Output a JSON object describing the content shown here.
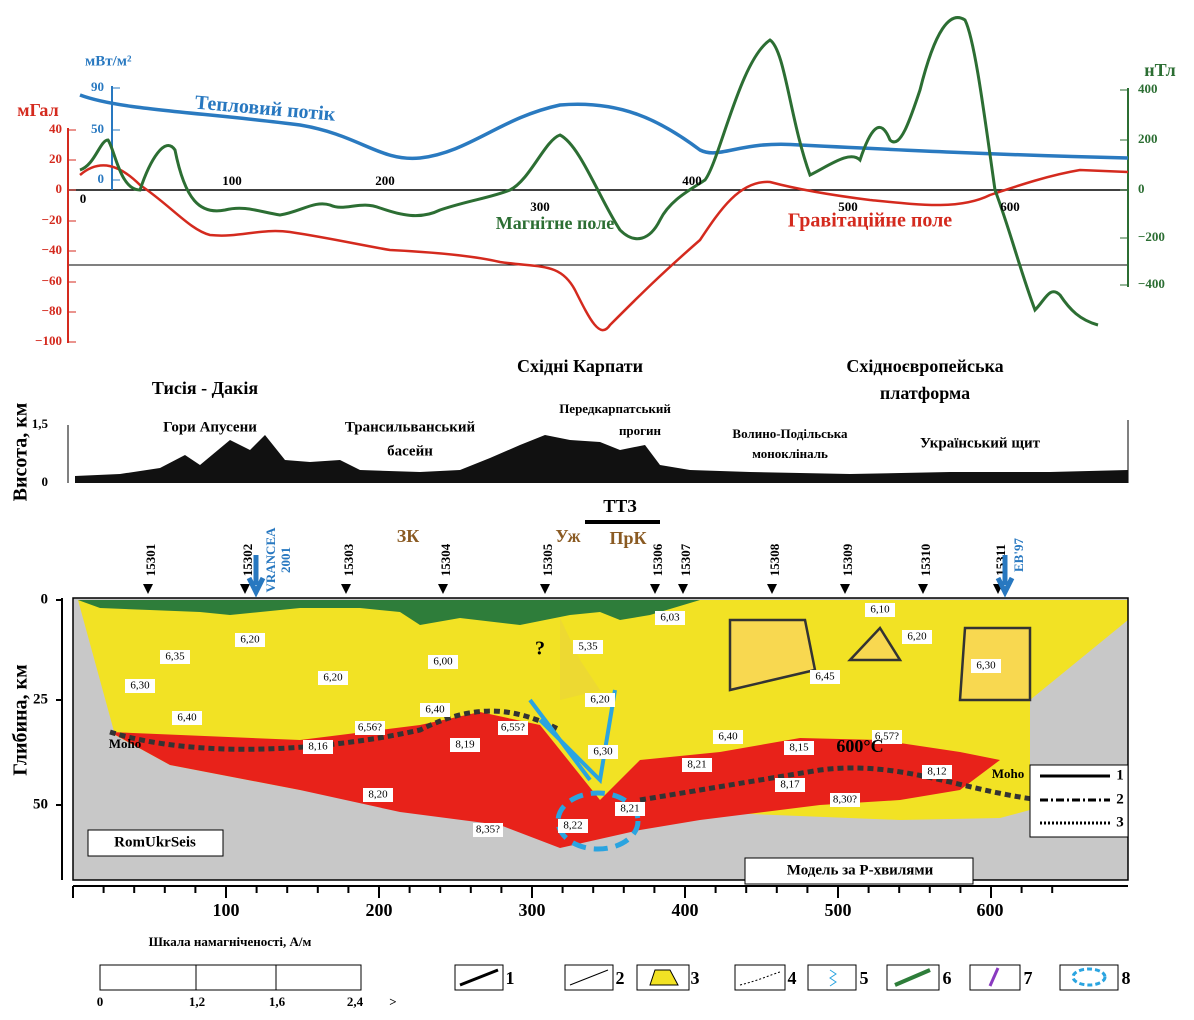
{
  "top_panel": {
    "heat_units": "мВт/м²",
    "gravity_units": "мГал",
    "magnetic_units": "нТл",
    "heat_ticks": [
      "90",
      "50",
      "0"
    ],
    "gravity_ticks": [
      "40",
      "20",
      "0",
      "−20",
      "−40",
      "−60",
      "−80",
      "−100"
    ],
    "magnetic_ticks": [
      "400",
      "200",
      "0",
      "−200",
      "−400"
    ],
    "distance_ticks": [
      "0",
      "100",
      "200",
      "300",
      "400",
      "500",
      "600"
    ],
    "heat_label": "Тепловий потік",
    "magnetic_label": "Магнітне поле",
    "gravity_label": "Гравітаційне поле"
  },
  "relief_panel": {
    "y_label": "Висота, км",
    "ticks": [
      "1,5",
      "0"
    ],
    "regions": [
      "Тисія - Дакія",
      "Східні Карпати",
      "Східноєвропейська",
      "платформа",
      "Гори Апусени",
      "Трансильванський",
      "басейн",
      "Передкарпатський",
      "прогин",
      "Волино-Подільська",
      "монокліналь",
      "Український щит"
    ]
  },
  "section": {
    "y_label": "Глибина, км",
    "depth_ticks": [
      "0",
      "25",
      "50"
    ],
    "distance_ticks": [
      "100",
      "200",
      "300",
      "400",
      "500",
      "600"
    ],
    "stations": [
      "15301",
      "15302",
      "15303",
      "15304",
      "15305",
      "15306",
      "15307",
      "15308",
      "15309",
      "15310",
      "15311"
    ],
    "markers": [
      "VRANCEA",
      "2001",
      "ЗК",
      "Уж",
      "ПрК",
      "ТТЗ",
      "EB'97"
    ],
    "velocities": [
      "6,20",
      "6,35",
      "6,20",
      "6,00",
      "6,30",
      "6,40",
      "6,40",
      "6,56?",
      "6,55?",
      "8,16",
      "8,19",
      "6,30",
      "8,20",
      "8,35?",
      "8,22",
      "8,21",
      "8,21",
      "5,35",
      "6,20",
      "6,03",
      "6,10",
      "6,20",
      "6,30",
      "6,45",
      "6,40",
      "6,57?",
      "8,15",
      "8,17",
      "8,30?",
      "8,12"
    ],
    "moho": [
      "Moho",
      "Moho"
    ],
    "isotherm": "600°C",
    "question": "?",
    "project": "RomUkrSeis",
    "model": "Модель за P-хвилями",
    "inset_legend": [
      "1",
      "2",
      "3"
    ]
  },
  "legend": {
    "scale_title": "Шкала намагніченості, А/м",
    "scale_ticks": [
      "0",
      "1,2",
      "1,6",
      "2,4",
      ">"
    ],
    "items": [
      "1",
      "2",
      "3",
      "4",
      "5",
      "6",
      "7",
      "8"
    ]
  }
}
